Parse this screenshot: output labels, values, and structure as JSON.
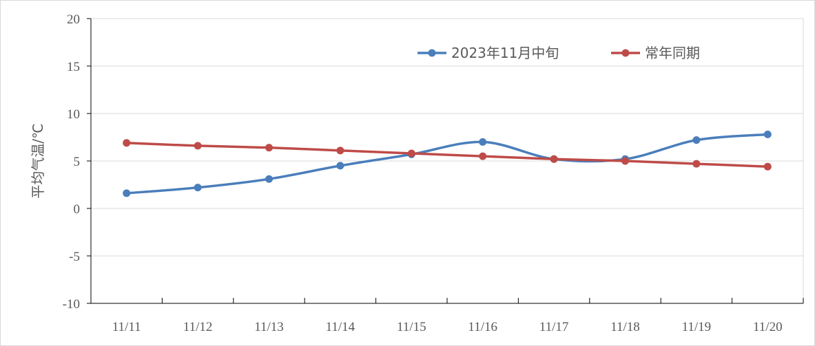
{
  "chart_data": {
    "type": "line",
    "categories": [
      "11/11",
      "11/12",
      "11/13",
      "11/14",
      "11/15",
      "11/16",
      "11/17",
      "11/18",
      "11/19",
      "11/20"
    ],
    "series": [
      {
        "name": "2023年11月中旬",
        "color": "#4a7ebb",
        "values": [
          1.6,
          2.2,
          3.1,
          4.5,
          5.7,
          7.0,
          5.2,
          5.2,
          7.2,
          7.8
        ]
      },
      {
        "name": "常年同期",
        "color": "#be4b48",
        "values": [
          6.9,
          6.6,
          6.4,
          6.1,
          5.8,
          5.5,
          5.2,
          5.0,
          4.7,
          4.4
        ]
      }
    ],
    "ylabel": "平均气温/℃",
    "xlabel": "",
    "ylim": [
      -10,
      20
    ],
    "yticks": [
      20,
      15,
      10,
      5,
      0,
      -5,
      -10
    ],
    "grid": true,
    "legend_position": "top-right",
    "smooth": true
  }
}
